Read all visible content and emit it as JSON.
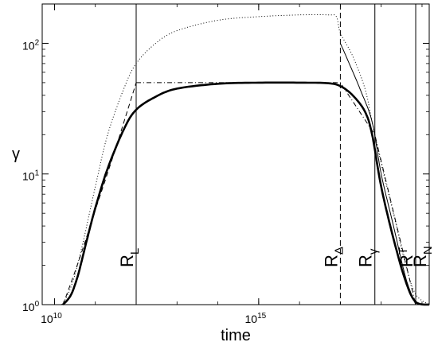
{
  "chart_data": {
    "type": "line",
    "title": "",
    "xlabel": "time",
    "ylabel": "γ",
    "xscale": "log",
    "yscale": "log",
    "xlim": [
      5000000000.0,
      1.5e+19
    ],
    "ylim": [
      1,
      200
    ],
    "grid": false,
    "legend": "none",
    "x_ticks": [
      {
        "value": 10000000000.0,
        "base": "10",
        "exp": "10"
      },
      {
        "value": 1000000000000000.0,
        "base": "10",
        "exp": "15"
      }
    ],
    "y_ticks": [
      {
        "value": 1,
        "base": "10",
        "exp": "0"
      },
      {
        "value": 10,
        "base": "10",
        "exp": "1"
      },
      {
        "value": 100,
        "base": "10",
        "exp": "2"
      }
    ],
    "vlines": [
      {
        "label": "R",
        "sub": "L",
        "sup": "",
        "x": 1000000000000.0,
        "style": "solid"
      },
      {
        "label": "R",
        "sub": "Δ",
        "sup": "",
        "x": 1e+17,
        "style": "dashed"
      },
      {
        "label": "R",
        "sub": "γ",
        "sup": "",
        "x": 7e+17,
        "style": "solid"
      },
      {
        "label": "R",
        "sub": "",
        "sup": "T",
        "x": 7e+18,
        "style": "solid"
      },
      {
        "label": "R",
        "sub": "N",
        "sup": "",
        "x": 1.5e+19,
        "style": "dashed"
      }
    ],
    "series": [
      {
        "style": "thick-solid",
        "x": [
          16000000000.0,
          20000000000.0,
          25000000000.0,
          30000000000.0,
          40000000000.0,
          60000000000.0,
          100000000000.0,
          200000000000.0,
          500000000000.0,
          1000000000000.0,
          3000000000000.0,
          10000000000000.0,
          100000000000000.0,
          1000000000000000.0,
          1e+16,
          5e+16,
          1e+17,
          2e+17,
          4e+17,
          6e+17,
          1e+18,
          2e+18,
          4e+18,
          7e+18,
          1.5e+19
        ],
        "y": [
          1.0,
          1.07,
          1.18,
          1.35,
          1.8,
          3.0,
          5.5,
          11,
          22,
          31,
          39,
          45,
          49,
          50,
          50,
          49.5,
          47,
          40,
          30,
          20,
          8,
          3.2,
          1.5,
          1.05,
          1.0
        ]
      },
      {
        "style": "dotted",
        "x": [
          15000000000.0,
          20000000000.0,
          30000000000.0,
          50000000000.0,
          100000000000.0,
          200000000000.0,
          500000000000.0,
          1000000000000.0,
          3000000000000.0,
          10000000000000.0,
          100000000000000.0,
          1000000000000000.0,
          1e+16,
          5e+16,
          8e+16,
          1e+17,
          2e+17,
          4e+17,
          6e+17,
          1e+18,
          2e+18,
          4e+18,
          7e+18,
          1.5e+19
        ],
        "y": [
          1.0,
          1.15,
          1.6,
          3.0,
          8,
          20,
          45,
          70,
          100,
          125,
          150,
          160,
          165,
          165,
          160,
          120,
          80,
          45,
          25,
          12,
          5,
          2,
          1.2,
          1.0
        ]
      },
      {
        "style": "dashed",
        "x": [
          16000000000.0,
          20000000000.0,
          40000000000.0,
          100000000000.0,
          300000000000.0,
          1000000000000.0
        ],
        "y": [
          1.0,
          1.2,
          2.2,
          5.3,
          15,
          50
        ]
      },
      {
        "style": "dash-dot",
        "x": [
          1000000000000.0,
          1e+17,
          7e+17,
          7e+18
        ],
        "y": [
          50,
          50,
          20,
          1.0
        ]
      },
      {
        "style": "thin-solid",
        "x": [
          1e+17,
          1.5e+17,
          3e+17,
          6e+17,
          1e+18,
          2e+18,
          4e+18,
          7e+18
        ],
        "y": [
          100,
          75,
          45,
          25,
          10,
          4,
          1.6,
          1.0
        ]
      }
    ]
  }
}
